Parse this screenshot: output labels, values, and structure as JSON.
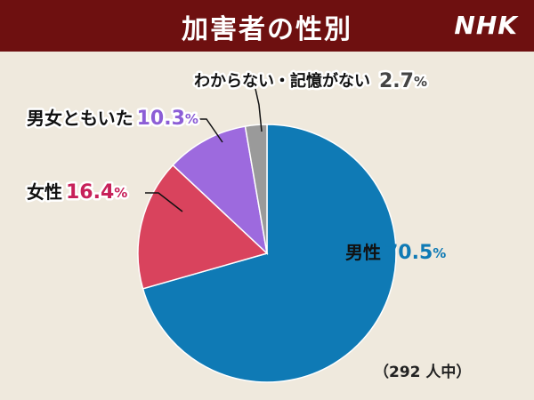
{
  "header": {
    "title": "加害者の性別",
    "logo": "NHK"
  },
  "colors": {
    "male": "#0f7ab5",
    "female": "#d9435d",
    "both": "#9d6ade",
    "unknown": "#9a9a9a",
    "header_bg": "#6e1010"
  },
  "chart_data": {
    "type": "pie",
    "title": "加害者の性別",
    "slices": [
      {
        "label": "男性",
        "value": 70.5,
        "value_text": "70.5",
        "color": "#0f7ab5",
        "value_color": "#0f7ab5"
      },
      {
        "label": "女性",
        "value": 16.4,
        "value_text": "16.4",
        "color": "#d9435d",
        "value_color": "#c7215a"
      },
      {
        "label": "男女ともいた",
        "value": 10.3,
        "value_text": "10.3",
        "color": "#9d6ade",
        "value_color": "#8c5ed6"
      },
      {
        "label": "わからない・記憶がない",
        "value": 2.7,
        "value_text": "2.7",
        "color": "#9a9a9a",
        "value_color": "#444444"
      }
    ],
    "unit": "%",
    "start": "12 o'clock",
    "direction": "clockwise"
  },
  "note": "（292 人中）"
}
